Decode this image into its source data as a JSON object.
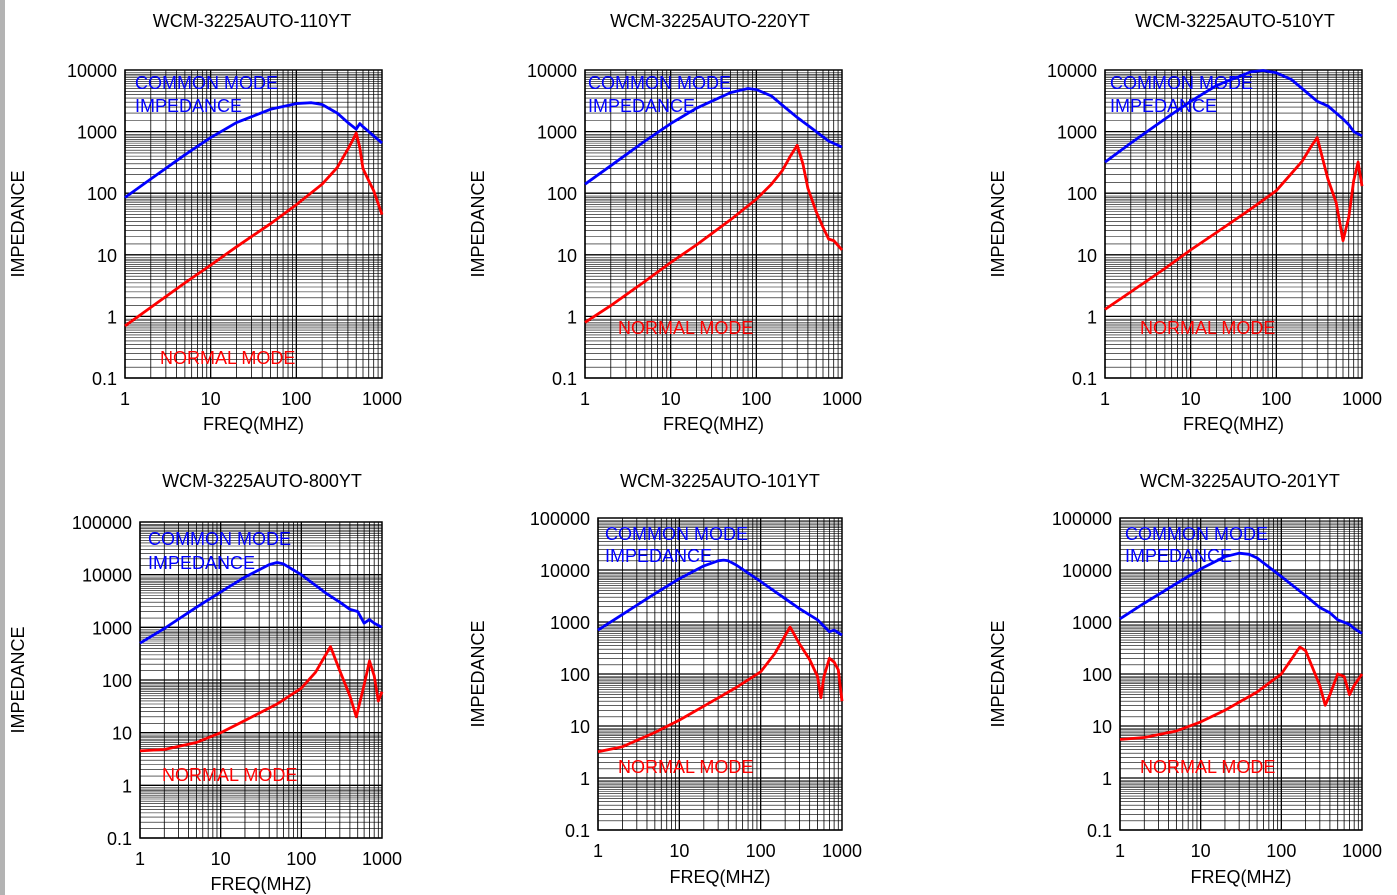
{
  "chart_data": [
    {
      "type": "line",
      "title": "WCM-3225AUTO-110YT",
      "xlabel": "FREQ(MHZ)",
      "ylabel": "IMPEDANCE",
      "xscale": "log",
      "yscale": "log",
      "xlim": [
        1,
        1000
      ],
      "ylim": [
        0.1,
        10000
      ],
      "xticks": [
        "1",
        "10",
        "100",
        "1000"
      ],
      "yticks": [
        "0.1",
        "1",
        "10",
        "100",
        "1000",
        "10000"
      ],
      "grid": true,
      "annotations": [
        {
          "series": "common",
          "lines": [
            "COMMON MODE",
            "IMPEDANCE"
          ]
        },
        {
          "series": "normal",
          "lines": [
            "NORMAL MODE"
          ]
        }
      ],
      "series": [
        {
          "id": "common",
          "color": "#0000ff",
          "x": [
            1,
            2,
            5,
            10,
            20,
            50,
            100,
            150,
            200,
            300,
            400,
            500,
            550,
            600,
            700,
            1000
          ],
          "y": [
            85,
            170,
            420,
            800,
            1400,
            2300,
            2850,
            2950,
            2750,
            2000,
            1400,
            1100,
            1350,
            1200,
            1000,
            650
          ]
        },
        {
          "id": "normal",
          "color": "#ff0000",
          "x": [
            1,
            2,
            5,
            10,
            20,
            50,
            100,
            200,
            300,
            400,
            450,
            500,
            550,
            600,
            700,
            800,
            1000
          ],
          "y": [
            0.7,
            1.4,
            3.5,
            6.8,
            13.5,
            32,
            65,
            140,
            260,
            520,
            700,
            950,
            550,
            250,
            160,
            110,
            45
          ]
        }
      ]
    },
    {
      "type": "line",
      "title": "WCM-3225AUTO-220YT",
      "xlabel": "FREQ(MHZ)",
      "ylabel": "IMPEDANCE",
      "xscale": "log",
      "yscale": "log",
      "xlim": [
        1,
        1000
      ],
      "ylim": [
        0.1,
        10000
      ],
      "xticks": [
        "1",
        "10",
        "100",
        "1000"
      ],
      "yticks": [
        "0.1",
        "1",
        "10",
        "100",
        "1000",
        "10000"
      ],
      "grid": true,
      "annotations": [
        {
          "series": "common",
          "lines": [
            "COMMON MODE",
            "IMPEDANCE"
          ]
        },
        {
          "series": "normal",
          "lines": [
            "NORMAL MODE"
          ]
        }
      ],
      "series": [
        {
          "id": "common",
          "color": "#0000ff",
          "x": [
            1,
            2,
            5,
            10,
            20,
            50,
            80,
            100,
            150,
            200,
            300,
            500,
            700,
            1000
          ],
          "y": [
            140,
            280,
            700,
            1350,
            2400,
            4300,
            5000,
            4800,
            3800,
            2700,
            1700,
            1000,
            700,
            560
          ]
        },
        {
          "id": "normal",
          "color": "#ff0000",
          "x": [
            1,
            2,
            5,
            10,
            20,
            50,
            100,
            150,
            200,
            250,
            300,
            350,
            400,
            500,
            600,
            700,
            800,
            1000
          ],
          "y": [
            0.8,
            1.5,
            3.7,
            7.5,
            14.5,
            37,
            80,
            140,
            230,
            400,
            600,
            300,
            120,
            50,
            28,
            18,
            17,
            12
          ]
        }
      ]
    },
    {
      "type": "line",
      "title": "WCM-3225AUTO-510YT",
      "xlabel": "FREQ(MHZ)",
      "ylabel": "IMPEDANCE",
      "xscale": "log",
      "yscale": "log",
      "xlim": [
        1,
        1000
      ],
      "ylim": [
        0.1,
        10000
      ],
      "xticks": [
        "1",
        "10",
        "100",
        "1000"
      ],
      "yticks": [
        "0.1",
        "1",
        "10",
        "100",
        "1000",
        "10000"
      ],
      "grid": true,
      "annotations": [
        {
          "series": "common",
          "lines": [
            "COMMON MODE",
            "IMPEDANCE"
          ]
        },
        {
          "series": "normal",
          "lines": [
            "NORMAL MODE"
          ]
        }
      ],
      "series": [
        {
          "id": "common",
          "color": "#0000ff",
          "x": [
            1,
            2,
            5,
            10,
            20,
            50,
            70,
            100,
            150,
            200,
            300,
            400,
            500,
            600,
            700,
            800,
            1000
          ],
          "y": [
            320,
            650,
            1600,
            3100,
            5600,
            9300,
            9800,
            9000,
            7000,
            5000,
            3100,
            2600,
            2000,
            1600,
            1300,
            1000,
            850
          ]
        },
        {
          "id": "normal",
          "color": "#ff0000",
          "x": [
            1,
            2,
            5,
            10,
            20,
            50,
            100,
            200,
            250,
            300,
            350,
            400,
            500,
            600,
            700,
            800,
            900,
            1000
          ],
          "y": [
            1.3,
            2.5,
            6,
            12,
            23,
            55,
            110,
            330,
            550,
            800,
            350,
            170,
            70,
            17,
            40,
            160,
            320,
            130
          ]
        }
      ]
    },
    {
      "type": "line",
      "title": "WCM-3225AUTO-800YT",
      "xlabel": "FREQ(MHZ)",
      "ylabel": "IMPEDANCE",
      "xscale": "log",
      "yscale": "log",
      "xlim": [
        1,
        1000
      ],
      "ylim": [
        0.1,
        100000
      ],
      "xticks": [
        "1",
        "10",
        "100",
        "1000"
      ],
      "yticks": [
        "0.1",
        "1",
        "10",
        "100",
        "1000",
        "10000",
        "100000"
      ],
      "grid": true,
      "annotations": [
        {
          "series": "common",
          "lines": [
            "COMMON MODE",
            "IMPEDANCE"
          ]
        },
        {
          "series": "normal",
          "lines": [
            "NORMAL MODE"
          ]
        }
      ],
      "series": [
        {
          "id": "common",
          "color": "#0000ff",
          "x": [
            1,
            2,
            5,
            10,
            20,
            40,
            50,
            60,
            100,
            200,
            300,
            400,
            500,
            600,
            700,
            800,
            1000
          ],
          "y": [
            500,
            950,
            2400,
            4700,
            9000,
            15500,
            17000,
            16000,
            10000,
            4500,
            3000,
            2200,
            2000,
            1200,
            1400,
            1200,
            1000
          ]
        },
        {
          "id": "normal",
          "color": "#ff0000",
          "x": [
            1,
            2,
            5,
            10,
            20,
            50,
            100,
            150,
            200,
            230,
            300,
            400,
            480,
            600,
            700,
            800,
            900,
            1000
          ],
          "y": [
            4.5,
            4.8,
            6.5,
            10,
            17,
            35,
            70,
            140,
            300,
            430,
            150,
            50,
            20,
            80,
            230,
            120,
            40,
            60
          ]
        }
      ]
    },
    {
      "type": "line",
      "title": "WCM-3225AUTO-101YT",
      "xlabel": "FREQ(MHZ)",
      "ylabel": "IMPEDANCE",
      "xscale": "log",
      "yscale": "log",
      "xlim": [
        1,
        1000
      ],
      "ylim": [
        0.1,
        100000
      ],
      "xticks": [
        "1",
        "10",
        "100",
        "1000"
      ],
      "yticks": [
        "0.1",
        "1",
        "10",
        "100",
        "1000",
        "10000",
        "100000"
      ],
      "grid": true,
      "annotations": [
        {
          "series": "common",
          "lines": [
            "COMMON MODE",
            "IMPEDANCE"
          ]
        },
        {
          "series": "normal",
          "lines": [
            "NORMAL MODE"
          ]
        }
      ],
      "series": [
        {
          "id": "common",
          "color": "#0000ff",
          "x": [
            1,
            2,
            5,
            10,
            20,
            30,
            35,
            40,
            50,
            100,
            200,
            300,
            500,
            700,
            800,
            1000
          ],
          "y": [
            700,
            1400,
            3500,
            6800,
            12000,
            15000,
            15500,
            15000,
            12500,
            6000,
            2800,
            1800,
            1100,
            650,
            700,
            560
          ]
        },
        {
          "id": "normal",
          "color": "#ff0000",
          "x": [
            1,
            2,
            5,
            10,
            20,
            50,
            100,
            150,
            200,
            230,
            300,
            400,
            500,
            550,
            600,
            700,
            800,
            900,
            1000
          ],
          "y": [
            3.2,
            4,
            7.5,
            13,
            24,
            55,
            110,
            250,
            550,
            800,
            380,
            190,
            90,
            35,
            90,
            200,
            170,
            120,
            30
          ]
        }
      ]
    },
    {
      "type": "line",
      "title": "WCM-3225AUTO-201YT",
      "xlabel": "FREQ(MHZ)",
      "ylabel": "IMPEDANCE",
      "xscale": "log",
      "yscale": "log",
      "xlim": [
        1,
        1000
      ],
      "ylim": [
        0.1,
        100000
      ],
      "xticks": [
        "1",
        "10",
        "100",
        "1000"
      ],
      "yticks": [
        "0.1",
        "1",
        "10",
        "100",
        "1000",
        "10000",
        "100000"
      ],
      "grid": true,
      "annotations": [
        {
          "series": "common",
          "lines": [
            "COMMON MODE",
            "IMPEDANCE"
          ]
        },
        {
          "series": "normal",
          "lines": [
            "NORMAL MODE"
          ]
        }
      ],
      "series": [
        {
          "id": "common",
          "color": "#0000ff",
          "x": [
            1,
            2,
            5,
            10,
            20,
            30,
            40,
            50,
            100,
            200,
            300,
            400,
            500,
            700,
            800,
            1000
          ],
          "y": [
            1150,
            2300,
            5500,
            10500,
            18000,
            21000,
            20000,
            17000,
            7500,
            3200,
            1900,
            1500,
            1100,
            900,
            750,
            600
          ]
        },
        {
          "id": "normal",
          "color": "#ff0000",
          "x": [
            1,
            2,
            5,
            10,
            20,
            50,
            100,
            150,
            170,
            200,
            300,
            350,
            400,
            500,
            600,
            700,
            800,
            1000
          ],
          "y": [
            5.5,
            6,
            8,
            12,
            20,
            45,
            100,
            250,
            330,
            280,
            60,
            25,
            40,
            100,
            90,
            40,
            60,
            100
          ]
        }
      ]
    }
  ]
}
